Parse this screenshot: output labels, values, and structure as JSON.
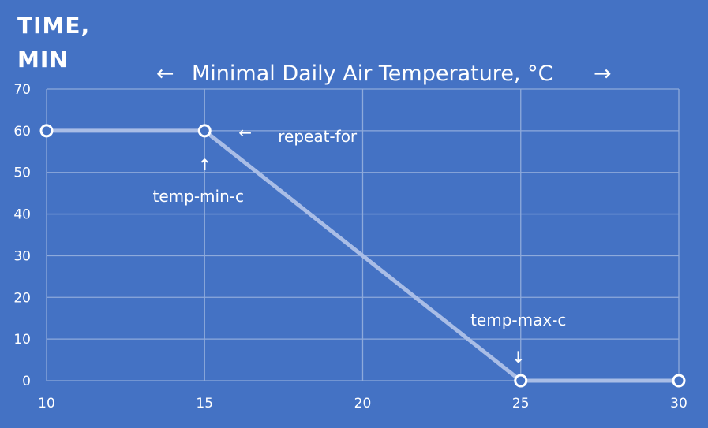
{
  "chart_data": {
    "type": "line",
    "title": "Minimal Daily Air Temperature, °C",
    "title_left_arrow": "←",
    "title_right_arrow": "→",
    "ylabel_lines": [
      "TIME,",
      "MIN"
    ],
    "xlabel": "",
    "xlim": [
      10,
      30
    ],
    "ylim": [
      0,
      70
    ],
    "xticks": [
      10,
      15,
      20,
      25,
      30
    ],
    "yticks": [
      0,
      10,
      20,
      30,
      40,
      50,
      60,
      70
    ],
    "grid": true,
    "legend": "none",
    "series": [
      {
        "x": [
          10,
          15,
          25,
          30
        ],
        "y": [
          60,
          60,
          0,
          0
        ],
        "color": "#a9bde6"
      }
    ],
    "annotations": [
      {
        "text": "repeat-for",
        "arrow": "←",
        "target_x": 15,
        "target_y": 60
      },
      {
        "text": "temp-min-c",
        "arrow": "↑",
        "target_x": 15,
        "target_y": 60
      },
      {
        "text": "temp-max-c",
        "arrow": "↓",
        "target_x": 25,
        "target_y": 0
      }
    ]
  },
  "colors": {
    "background": "#4472c4",
    "grid": "#8eaadb",
    "line": "#a9bde6",
    "marker_fill": "#4472c4",
    "marker_stroke": "#ffffff",
    "text": "#ffffff"
  }
}
